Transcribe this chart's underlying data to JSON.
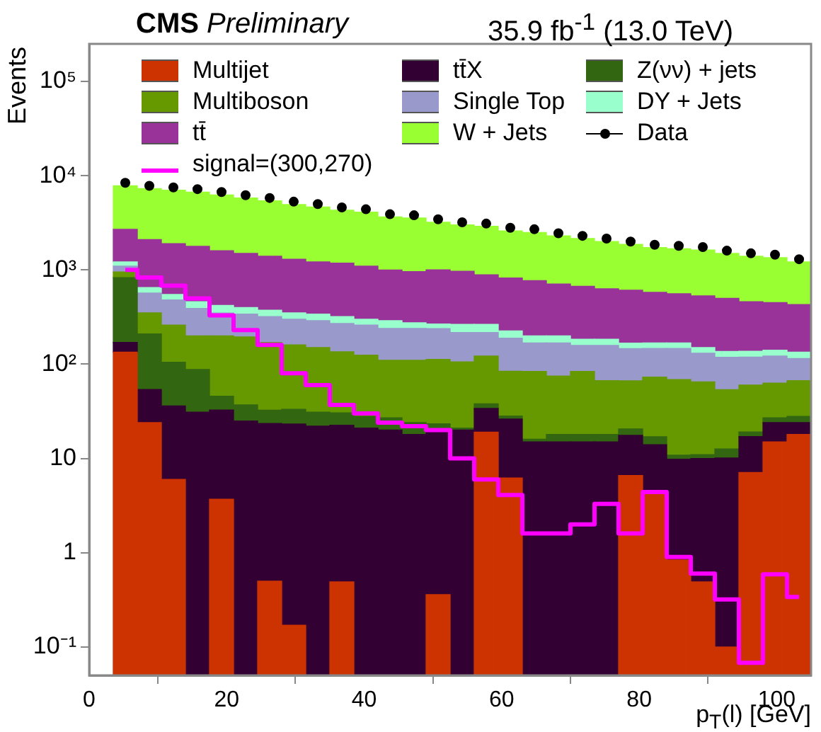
{
  "chart_data": {
    "type": "bar",
    "title": "CMS Preliminary",
    "subtitle": "35.9 fb$^{-1}$ (13.0 TeV)",
    "xlabel": "p$_{T}$(l) [GeV]",
    "ylabel": "Events",
    "stacked": true,
    "log": "y",
    "legend": "top",
    "x": [
      5.25,
      8.75,
      12.25,
      15.75,
      19.25,
      22.75,
      26.25,
      29.75,
      33.25,
      36.75,
      40.25,
      43.75,
      47.25,
      50.75,
      54.25,
      57.75,
      61.25,
      64.75,
      68.25,
      71.75,
      75.25,
      78.75,
      82.25,
      85.75,
      89.25,
      92.75,
      96.25,
      99.75,
      103.25
    ],
    "xlim": [
      0,
      105
    ],
    "xticks": [
      0,
      20,
      40,
      60,
      80,
      100
    ],
    "ylim": [
      0.05,
      250000
    ],
    "yticks": [
      {
        "value": 0.1,
        "label": "10⁻¹"
      },
      1,
      10,
      {
        "value": 100,
        "label": "10²"
      },
      {
        "value": 1000,
        "label": "10³"
      },
      {
        "value": 10000,
        "label": "10⁴"
      },
      {
        "value": 100000,
        "label": "10⁵"
      }
    ],
    "series": [
      {
        "name": "Multijet",
        "color": "#cc3300",
        "values": [
          134,
          24,
          6,
          null,
          3.7,
          null,
          0.5,
          0.17,
          null,
          0.49,
          null,
          null,
          null,
          0.36,
          null,
          19,
          6.2,
          null,
          null,
          null,
          null,
          6.6,
          4.5,
          0.84,
          0.49,
          0.1,
          7.1,
          15,
          18
        ]
      },
      {
        "name": "tt̄X",
        "color": "#330033",
        "values": [
          36,
          30,
          30,
          31,
          29,
          25,
          23,
          23,
          22,
          22,
          21,
          20,
          18,
          20,
          20,
          15,
          20,
          15,
          15,
          15,
          15,
          11,
          9.5,
          9,
          9.5,
          10,
          10,
          9,
          6
        ]
      },
      {
        "name": "Z(νν) + jets",
        "color": "#336611",
        "values": [
          660,
          156,
          69,
          57,
          13,
          12,
          9,
          10,
          9,
          8,
          7,
          7,
          6,
          3,
          1,
          4,
          2,
          1,
          3,
          3,
          3,
          3,
          3,
          1,
          1,
          2.5,
          2,
          3,
          4
        ]
      },
      {
        "name": "Multiboson",
        "color": "#669900",
        "values": [
          120,
          140,
          155,
          112,
          154,
          158,
          137,
          127,
          119,
          105,
          97,
          83,
          86,
          89,
          85,
          84,
          56,
          68,
          57,
          66,
          49,
          46,
          56,
          58,
          54,
          41,
          41,
          36,
          39
        ]
      },
      {
        "name": "Single Top",
        "color": "#9999cc",
        "values": [
          150,
          220,
          220,
          190,
          150,
          145,
          150,
          140,
          140,
          135,
          135,
          130,
          130,
          126,
          111,
          95,
          105,
          84,
          93,
          74,
          91,
          80,
          74,
          78,
          66,
          65,
          59,
          59,
          48
        ]
      },
      {
        "name": "DY + Jets",
        "color": "#99ffcc",
        "values": [
          120,
          80,
          70,
          70,
          70,
          60,
          55,
          50,
          50,
          50,
          40,
          50,
          35,
          29,
          48,
          48,
          36,
          32,
          32,
          26,
          26,
          21,
          21,
          21,
          19,
          18,
          18,
          19,
          19
        ]
      },
      {
        "name": "tt̄",
        "color": "#993399",
        "values": [
          1480,
          1450,
          1350,
          1320,
          1180,
          1100,
          1025,
          950,
          880,
          860,
          800,
          710,
          685,
          733,
          705,
          625,
          595,
          570,
          510,
          486,
          446,
          442,
          412,
          392,
          380,
          363,
          323,
          309,
          296
        ]
      },
      {
        "name": "W + Jets",
        "color": "#99ff33",
        "values": [
          5100,
          5200,
          5100,
          4900,
          4650,
          4300,
          4000,
          3650,
          3430,
          3120,
          3000,
          2650,
          2590,
          2200,
          2030,
          2010,
          1780,
          1730,
          1590,
          1480,
          1370,
          1260,
          1150,
          1120,
          1100,
          1000,
          940,
          900,
          790
        ]
      },
      {
        "name": "Data",
        "type": "scatter",
        "marker": "circle",
        "color": "#000000",
        "values": [
          8400,
          7800,
          7500,
          7200,
          6700,
          6200,
          5800,
          5300,
          5000,
          4600,
          4400,
          3900,
          3800,
          3450,
          3200,
          3100,
          2800,
          2700,
          2450,
          2300,
          2150,
          2000,
          1850,
          1800,
          1750,
          1600,
          1500,
          1450,
          1300
        ]
      },
      {
        "name": "signal=(300,270)",
        "type": "step",
        "color": "#ff00ff",
        "values": [
          1000,
          830,
          680,
          500,
          330,
          230,
          160,
          80,
          60,
          37,
          30,
          24,
          22,
          20,
          10,
          6,
          4.1,
          1.6,
          1.6,
          2,
          3.3,
          1.6,
          4.4,
          0.9,
          0.6,
          0.32,
          0.068,
          0.59,
          0.34
        ]
      }
    ]
  }
}
